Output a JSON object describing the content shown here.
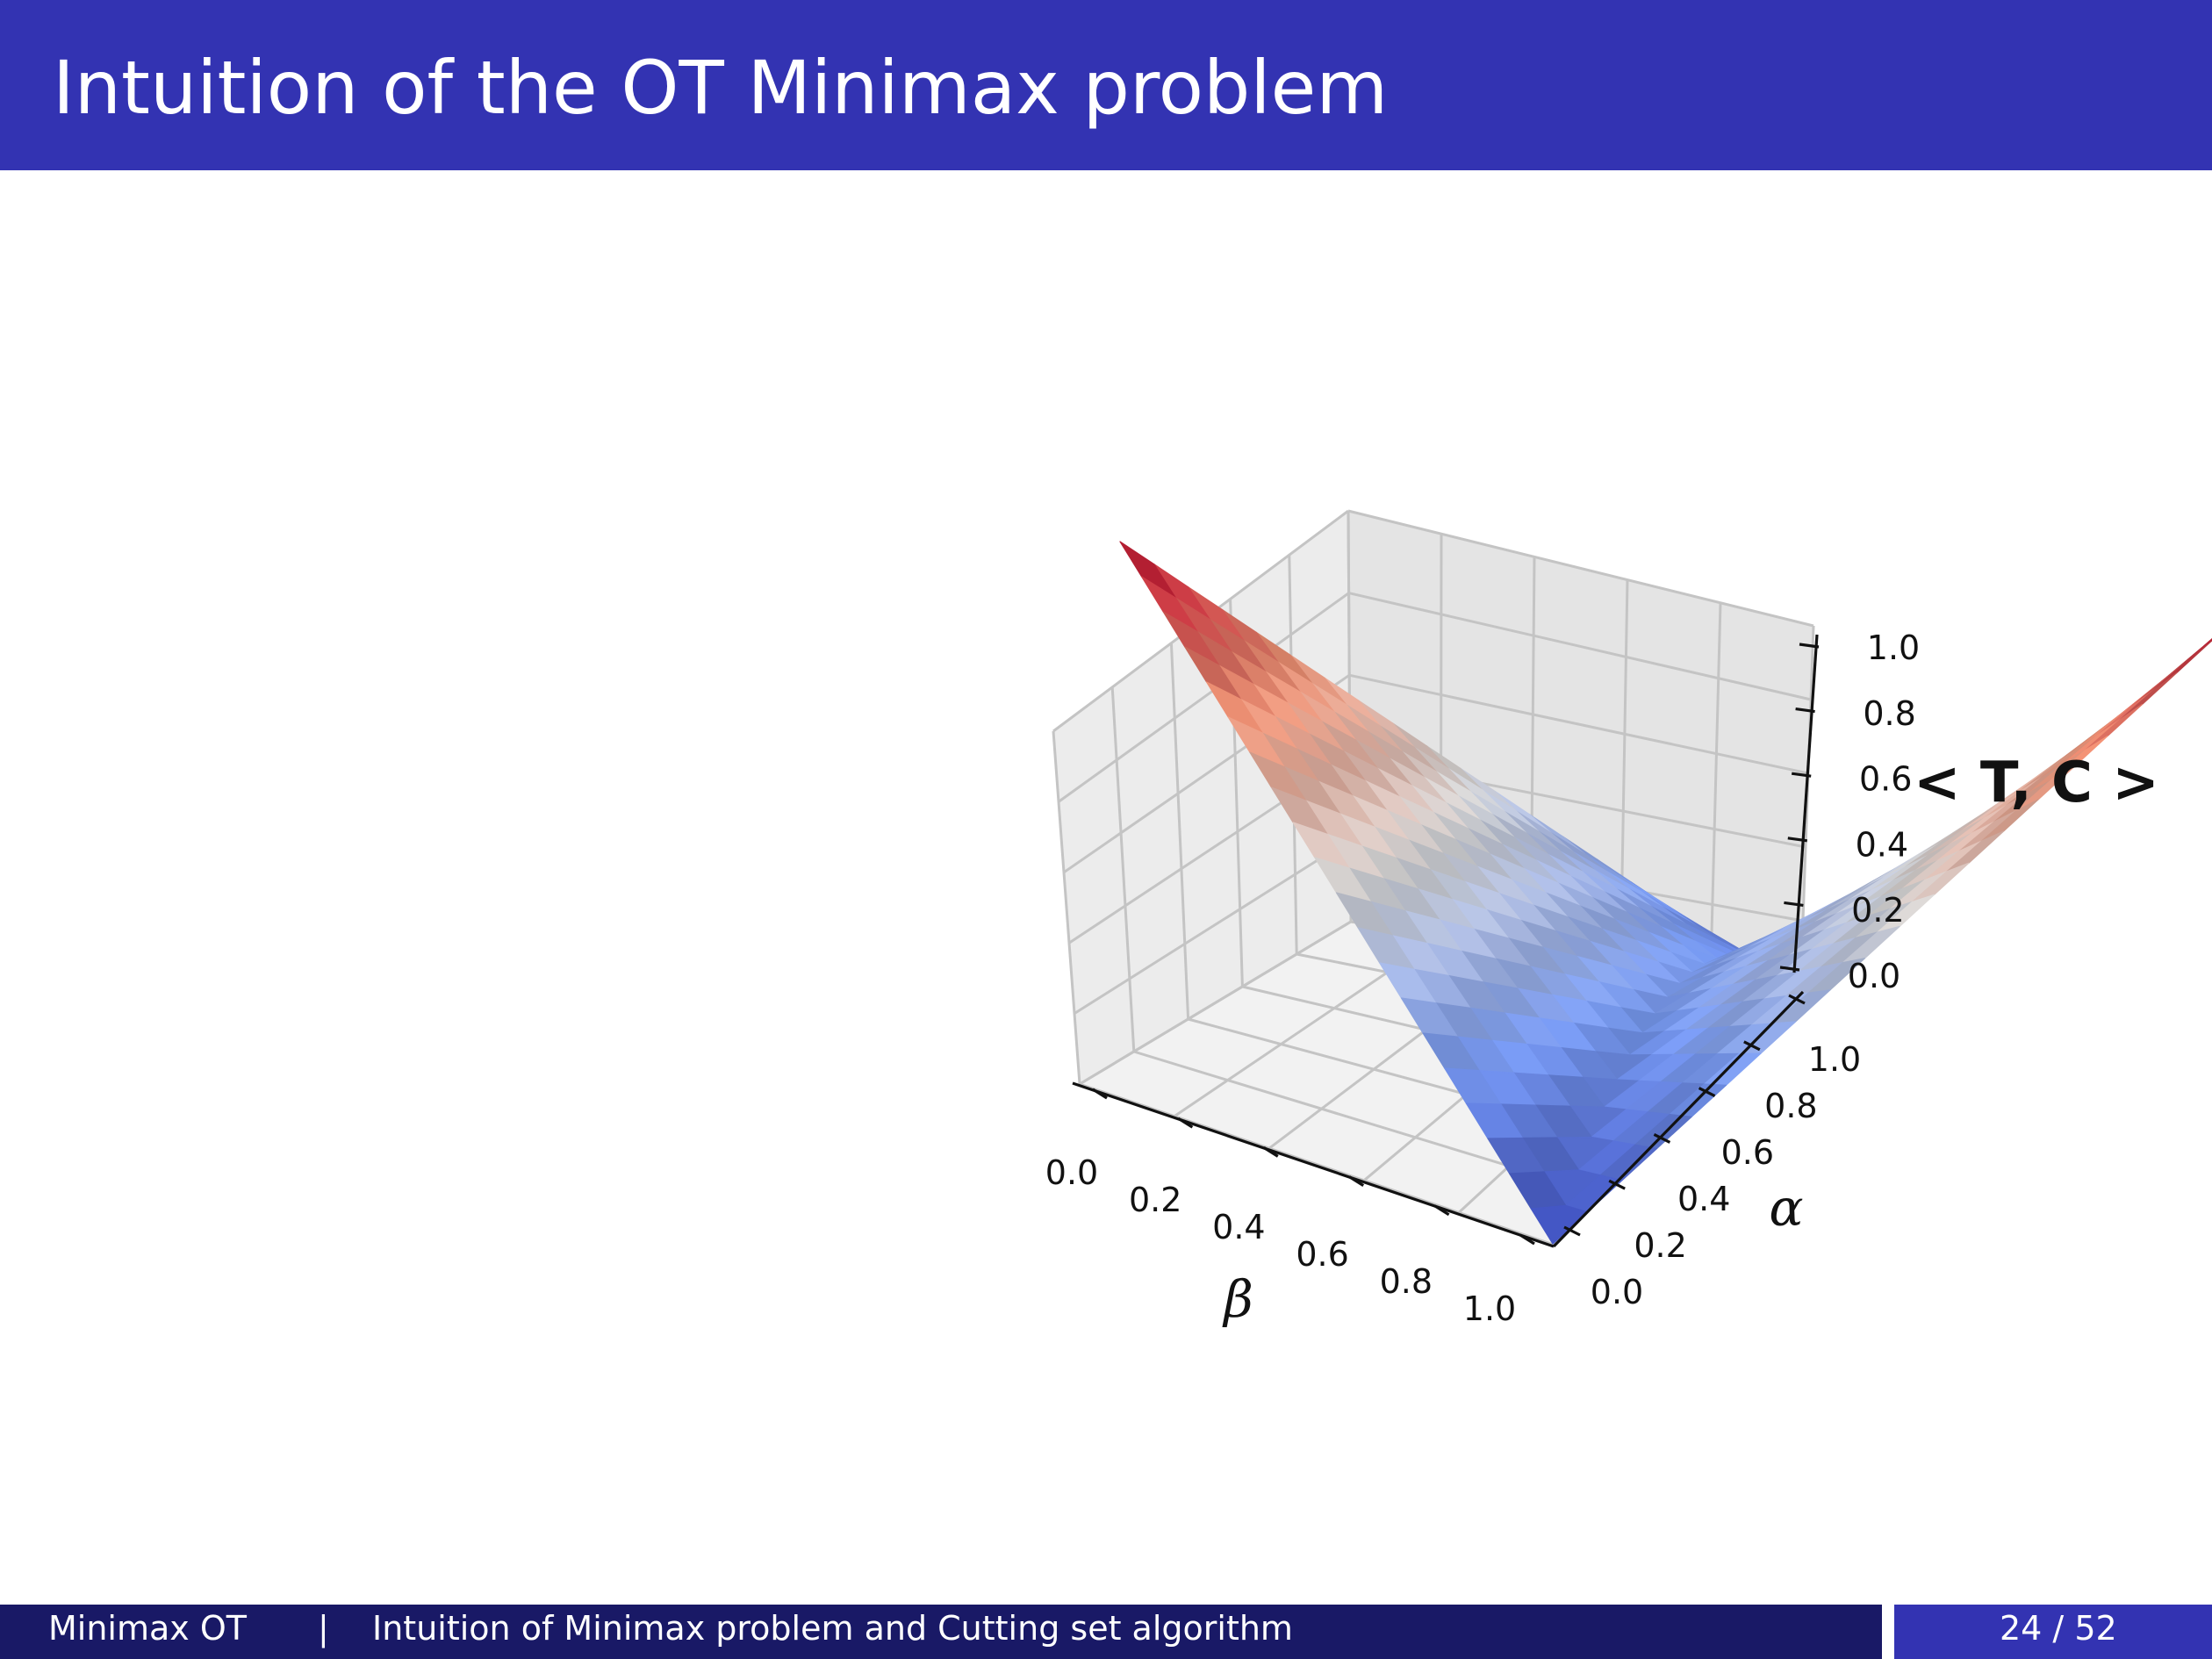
{
  "slide": {
    "title": "Intuition of the OT Minimax problem"
  },
  "footer": {
    "short_title": "Minimax OT",
    "separator": "|",
    "section": "Intuition of Minimax problem and Cutting set algorithm",
    "page": "24 / 52"
  },
  "colors": {
    "header_bg": "#3333b2",
    "footer_dark": "#191966",
    "colormap": "coolwarm",
    "cmap_low": "#3b4cc0",
    "cmap_mid": "#dddddd",
    "cmap_high": "#b40426"
  },
  "chart_data": {
    "type": "surface3d",
    "function": "z = max(alpha*beta, (1-alpha)*(1-beta))",
    "xlabel": "β",
    "ylabel": "α",
    "zlabel": "< T, C >",
    "x_ticks": [
      "0.0",
      "0.2",
      "0.4",
      "0.6",
      "0.8",
      "1.0"
    ],
    "y_ticks": [
      "0.0",
      "0.2",
      "0.4",
      "0.6",
      "0.8",
      "1.0"
    ],
    "z_ticks": [
      "0.0",
      "0.2",
      "0.4",
      "0.6",
      "0.8",
      "1.0"
    ],
    "xlim": [
      0,
      1
    ],
    "ylim": [
      0,
      1
    ],
    "zlim": [
      0,
      1
    ],
    "grid_steps": 20,
    "grid": true,
    "corners": [
      {
        "beta": 0,
        "alpha": 0,
        "z": 1.0
      },
      {
        "beta": 1,
        "alpha": 1,
        "z": 1.0
      },
      {
        "beta": 1,
        "alpha": 0,
        "z": 0.0
      },
      {
        "beta": 0,
        "alpha": 1,
        "z": 0.0
      }
    ],
    "saddle": {
      "beta": 0.5,
      "alpha": 0.5,
      "z": 0.25
    }
  }
}
